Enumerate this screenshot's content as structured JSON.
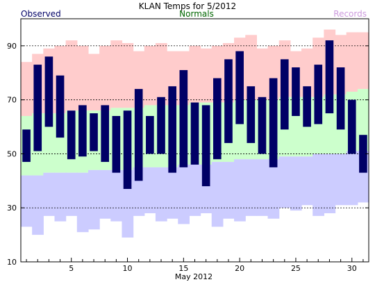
{
  "chart_data": {
    "type": "bar",
    "title": "KLAN Temps for 5/2012",
    "xlabel": "May 2012",
    "ylabel": "",
    "legend": {
      "observed": "Observed",
      "normals": "Normals",
      "records": "Records",
      "placement": "top"
    },
    "colors": {
      "observed": "#000066",
      "normals_band": "#ccffcc",
      "records_high_band": "#ffcccc",
      "records_low_band": "#ccccff",
      "observed_label": "#000066",
      "normals_label": "#006600",
      "records_label": "#cc99dd"
    },
    "ylim": [
      10,
      100
    ],
    "yticks": [
      10,
      30,
      50,
      70,
      90
    ],
    "xticks": [
      5,
      10,
      15,
      20,
      25,
      30
    ],
    "grid_y": [
      30,
      50,
      70,
      90
    ],
    "x": [
      1,
      2,
      3,
      4,
      5,
      6,
      7,
      8,
      9,
      10,
      11,
      12,
      13,
      14,
      15,
      16,
      17,
      18,
      19,
      20,
      21,
      22,
      23,
      24,
      25,
      26,
      27,
      28,
      29,
      30,
      31
    ],
    "series": [
      {
        "name": "Observed",
        "key": "obs_high",
        "values": [
          59,
          83,
          86,
          79,
          66,
          68,
          65,
          68,
          64,
          66,
          74,
          64,
          71,
          75,
          81,
          69,
          68,
          78,
          85,
          88,
          75,
          71,
          78,
          85,
          82,
          75,
          83,
          92,
          82,
          70,
          57
        ]
      },
      {
        "name": "Observed",
        "key": "obs_low",
        "values": [
          47,
          51,
          60,
          56,
          48,
          49,
          51,
          47,
          43,
          37,
          40,
          50,
          50,
          43,
          45,
          46,
          38,
          48,
          54,
          61,
          54,
          50,
          45,
          59,
          64,
          60,
          61,
          65,
          59,
          50,
          43
        ]
      },
      {
        "name": "Records",
        "key": "rec_high",
        "values": [
          84,
          87,
          89,
          90,
          92,
          90,
          87,
          90,
          92,
          91,
          88,
          90,
          91,
          88,
          88,
          90,
          89,
          90,
          91,
          93,
          94,
          89,
          90,
          92,
          88,
          89,
          93,
          96,
          94,
          95,
          95
        ]
      },
      {
        "name": "Normals",
        "key": "norm_high",
        "values": [
          64,
          65,
          65,
          65,
          66,
          66,
          66,
          66,
          67,
          67,
          67,
          68,
          68,
          68,
          68,
          69,
          69,
          69,
          69,
          70,
          70,
          70,
          70,
          71,
          71,
          71,
          71,
          72,
          72,
          73,
          74
        ]
      },
      {
        "name": "Normals",
        "key": "norm_low",
        "values": [
          42,
          42,
          43,
          43,
          43,
          43,
          44,
          44,
          44,
          44,
          45,
          45,
          45,
          45,
          46,
          46,
          46,
          47,
          47,
          48,
          48,
          48,
          48,
          49,
          49,
          49,
          50,
          50,
          50,
          51,
          51
        ]
      },
      {
        "name": "Records",
        "key": "rec_low",
        "values": [
          23,
          20,
          27,
          25,
          27,
          21,
          22,
          26,
          25,
          19,
          27,
          28,
          25,
          26,
          24,
          27,
          28,
          23,
          26,
          25,
          27,
          27,
          26,
          30,
          29,
          31,
          27,
          28,
          31,
          31,
          32
        ]
      }
    ]
  }
}
